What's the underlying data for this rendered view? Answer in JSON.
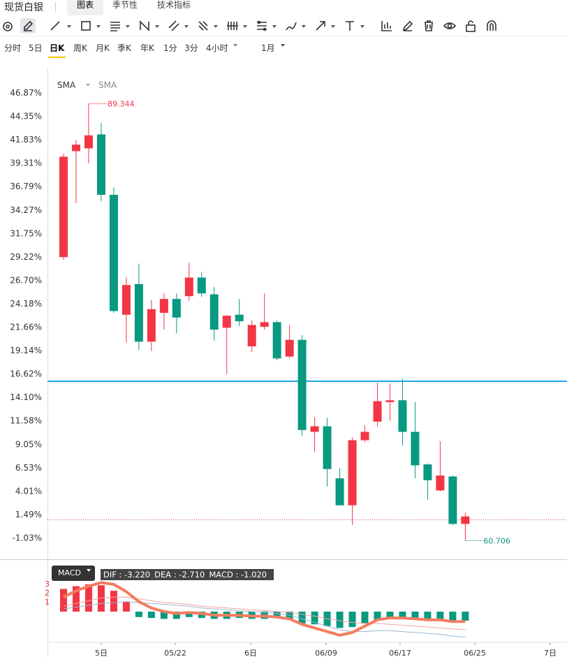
{
  "header": {
    "title": "现货白银",
    "tabs": [
      {
        "label": "图表",
        "active": true
      },
      {
        "label": "季节性",
        "active": false
      },
      {
        "label": "技术指标",
        "active": false
      }
    ]
  },
  "toolbar": {
    "tools": [
      "circle-tool-icon",
      "pencil-tool-icon",
      "line-tool-icon",
      "rectangle-tool-icon",
      "horizontal-lines-tool-icon",
      "pattern-tool-icon",
      "trend-channel-tool-icon",
      "fib-tool-icon",
      "vertical-lines-tool-icon",
      "measure-tool-icon",
      "brush-tool-icon",
      "arrow-tool-icon",
      "text-tool-icon",
      "chart-settings-icon",
      "edit-icon",
      "trash-icon",
      "eye-icon",
      "unlock-icon",
      "magnet-icon"
    ]
  },
  "periods": {
    "items": [
      "分时",
      "5日",
      "日K",
      "周K",
      "月K",
      "季K",
      "年K",
      "1分",
      "3分",
      "4小时"
    ],
    "active": "日K",
    "range": "1月"
  },
  "indicator": {
    "label1": "SMA",
    "label2": "SMA"
  },
  "price_labels": {
    "high": "89.344",
    "low": "60.706"
  },
  "macd": {
    "label": "MACD",
    "dif": "DIF : -3.220",
    "dea": "DEA : -2.710",
    "macd": "MACD : -1.020",
    "levels": [
      "3",
      "2",
      "1"
    ]
  },
  "colors": {
    "up": "#f23645",
    "down": "#089981",
    "hline": "#1ea8e8",
    "dif": "#f47c5f"
  },
  "chart_data": {
    "type": "candlestick",
    "y_ticks": [
      "46.87%",
      "44.35%",
      "41.83%",
      "39.31%",
      "36.79%",
      "34.27%",
      "31.75%",
      "29.22%",
      "26.70%",
      "24.18%",
      "21.66%",
      "19.14%",
      "16.62%",
      "14.10%",
      "11.58%",
      "9.05%",
      "6.53%",
      "4.01%",
      "1.49%",
      "-1.03%"
    ],
    "x_ticks": [
      "5日",
      "05/22",
      "6日",
      "06/09",
      "06/17",
      "06/25",
      "7日"
    ],
    "ylim": [
      -2.0,
      47.6
    ],
    "hline": 15.85,
    "dotted_line": 0.95,
    "candles": [
      {
        "o": 29.2,
        "h": 40.3,
        "l": 28.9,
        "c": 40.0
      },
      {
        "o": 40.6,
        "h": 41.8,
        "l": 35.0,
        "c": 41.3
      },
      {
        "o": 40.9,
        "h": 45.7,
        "l": 39.3,
        "c": 42.3
      },
      {
        "o": 42.4,
        "h": 43.6,
        "l": 35.2,
        "c": 35.9
      },
      {
        "o": 35.9,
        "h": 36.7,
        "l": 23.2,
        "c": 23.4
      },
      {
        "o": 23.0,
        "h": 27.0,
        "l": 20.0,
        "c": 26.2
      },
      {
        "o": 26.3,
        "h": 28.5,
        "l": 19.2,
        "c": 20.1
      },
      {
        "o": 20.1,
        "h": 24.6,
        "l": 19.1,
        "c": 23.6
      },
      {
        "o": 23.2,
        "h": 25.3,
        "l": 21.4,
        "c": 24.7
      },
      {
        "o": 24.7,
        "h": 25.3,
        "l": 21.0,
        "c": 22.7
      },
      {
        "o": 25.0,
        "h": 28.6,
        "l": 24.5,
        "c": 27.0
      },
      {
        "o": 27.0,
        "h": 27.6,
        "l": 24.9,
        "c": 25.3
      },
      {
        "o": 25.2,
        "h": 26.0,
        "l": 20.2,
        "c": 21.4
      },
      {
        "o": 21.6,
        "h": 22.9,
        "l": 16.6,
        "c": 22.9
      },
      {
        "o": 23.0,
        "h": 24.7,
        "l": 21.8,
        "c": 22.3
      },
      {
        "o": 19.6,
        "h": 22.4,
        "l": 19.0,
        "c": 21.9
      },
      {
        "o": 21.7,
        "h": 25.3,
        "l": 21.4,
        "c": 22.2
      },
      {
        "o": 22.2,
        "h": 22.4,
        "l": 18.1,
        "c": 18.3
      },
      {
        "o": 18.5,
        "h": 21.9,
        "l": 18.3,
        "c": 20.3
      },
      {
        "o": 20.3,
        "h": 20.8,
        "l": 10.0,
        "c": 10.6
      },
      {
        "o": 10.4,
        "h": 12.0,
        "l": 8.2,
        "c": 11.0
      },
      {
        "o": 11.0,
        "h": 11.9,
        "l": 4.5,
        "c": 6.4
      },
      {
        "o": 5.4,
        "h": 6.5,
        "l": 2.6,
        "c": 2.5
      },
      {
        "o": 2.5,
        "h": 9.8,
        "l": 0.4,
        "c": 9.5
      },
      {
        "o": 9.5,
        "h": 11.1,
        "l": 9.3,
        "c": 10.4
      },
      {
        "o": 11.5,
        "h": 15.7,
        "l": 11.0,
        "c": 13.7
      },
      {
        "o": 13.6,
        "h": 15.6,
        "l": 11.6,
        "c": 13.8
      },
      {
        "o": 13.8,
        "h": 16.1,
        "l": 8.9,
        "c": 10.4
      },
      {
        "o": 10.4,
        "h": 13.6,
        "l": 5.4,
        "c": 6.8
      },
      {
        "o": 6.9,
        "h": 7.0,
        "l": 3.1,
        "c": 5.2
      },
      {
        "o": 4.1,
        "h": 9.4,
        "l": 4.0,
        "c": 5.7
      },
      {
        "o": 5.6,
        "h": 5.7,
        "l": 0.4,
        "c": 0.5
      },
      {
        "o": 0.5,
        "h": 1.7,
        "l": -1.3,
        "c": 1.3
      }
    ],
    "macd_hist": [
      2.5,
      2.8,
      3.0,
      2.9,
      2.3,
      1.1,
      -0.6,
      -0.7,
      -0.8,
      -0.8,
      -0.6,
      -0.7,
      -0.8,
      -0.8,
      -0.7,
      -0.8,
      -0.8,
      -0.7,
      -0.8,
      -1.3,
      -1.4,
      -1.6,
      -1.8,
      -1.7,
      -1.3,
      -0.9,
      -0.7,
      -0.7,
      -0.7,
      -0.8,
      -0.9,
      -1.0,
      -1.0
    ],
    "macd_dif": [
      1.6,
      2.3,
      2.8,
      3.2,
      3.0,
      2.2,
      1.1,
      0.4,
      0.0,
      -0.2,
      -0.1,
      -0.2,
      -0.4,
      -0.4,
      -0.4,
      -0.5,
      -0.5,
      -0.6,
      -0.8,
      -1.4,
      -1.8,
      -2.2,
      -2.6,
      -2.3,
      -1.6,
      -0.9,
      -0.7,
      -0.7,
      -0.8,
      -0.9,
      -0.9,
      -1.1,
      -1.1
    ],
    "macd_dea": [
      0.6,
      0.9,
      1.2,
      1.5,
      1.6,
      1.6,
      1.4,
      1.2,
      1.0,
      0.9,
      0.8,
      0.6,
      0.5,
      0.4,
      0.3,
      0.2,
      0.1,
      0.0,
      -0.1,
      -0.3,
      -0.5,
      -0.8,
      -1.0,
      -1.2,
      -1.3,
      -1.3,
      -1.4,
      -1.5,
      -1.6,
      -1.7,
      -1.8,
      -1.9,
      -2.0
    ],
    "macd_sig": [
      0.3,
      0.5,
      0.7,
      0.9,
      1.0,
      1.1,
      1.0,
      0.9,
      0.8,
      0.7,
      0.6,
      0.4,
      0.3,
      0.2,
      0.1,
      0.0,
      -0.1,
      -0.2,
      -0.4,
      -0.8,
      -1.2,
      -1.6,
      -2.0,
      -2.2,
      -2.2,
      -2.1,
      -2.1,
      -2.2,
      -2.3,
      -2.4,
      -2.5,
      -2.7,
      -2.8
    ]
  }
}
